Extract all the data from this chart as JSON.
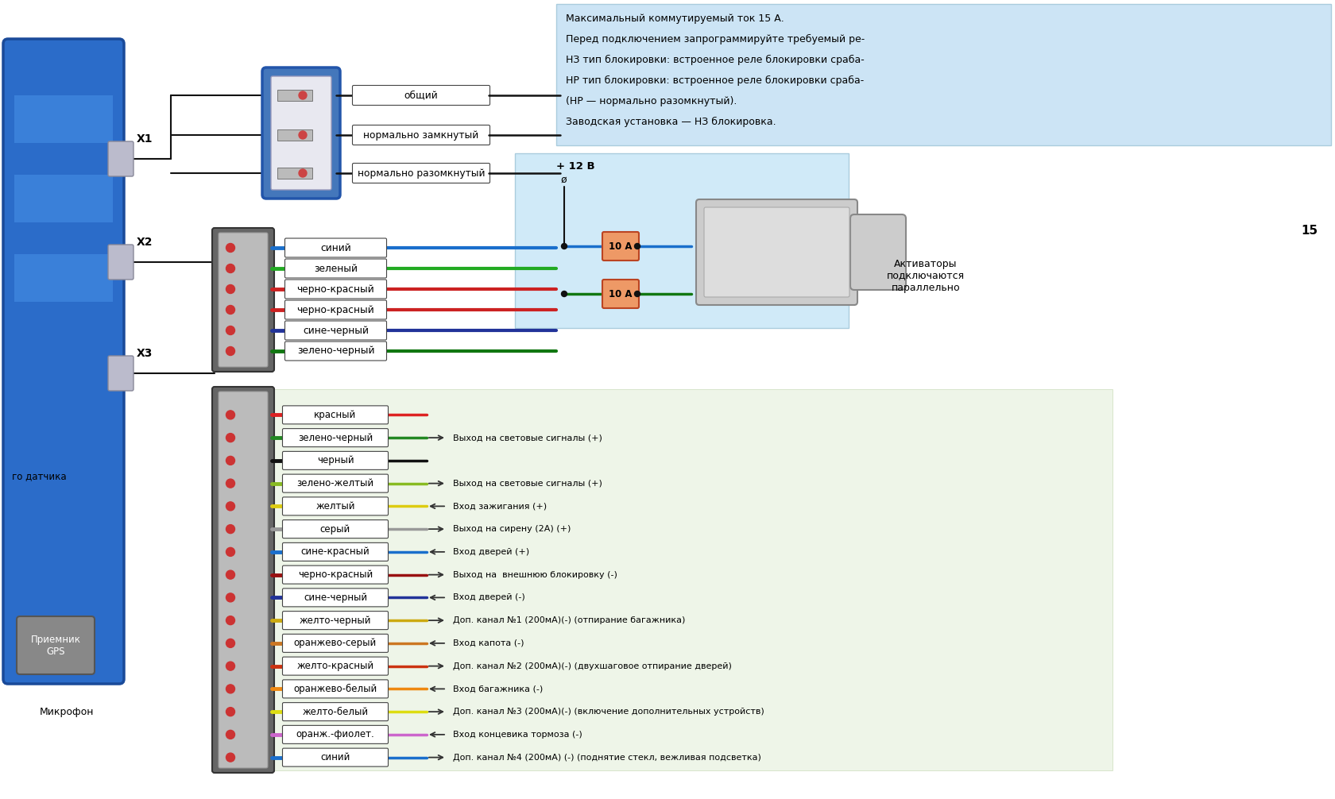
{
  "bg_color": "#ffffff",
  "info_box_color": "#cce4f5",
  "info_lines": [
    "Максимальный коммутируемый ток 15 А.",
    "Перед подключением запрограммируйте требуемый ре-",
    "НЗ тип блокировки: встроенное реле блокировки сраба-",
    "НР тип блокировки: встроенное реле блокировки сраба-",
    "(НР — нормально разомкнутый).",
    "Заводская установка — НЗ блокировка."
  ],
  "relay_labels": [
    "общий",
    "нормально замкнутый",
    "нормально разомкнутый"
  ],
  "x2_labels": [
    "синий",
    "зеленый",
    "черно-красный",
    "черно-красный",
    "сине-черный",
    "зелено-черный"
  ],
  "x2_wire_colors": [
    "#1a6fcc",
    "#22aa22",
    "#cc2222",
    "#cc2222",
    "#223399",
    "#117711"
  ],
  "x2_wire_colors2": [
    "#1a6fcc",
    "#22aa22",
    "#111111",
    "#111111",
    "#223399",
    "#117711"
  ],
  "x3_labels": [
    "красный",
    "зелено-черный",
    "черный",
    "зелено-желтый",
    "желтый",
    "серый",
    "сине-красный",
    "черно-красный",
    "сине-черный",
    "желто-черный",
    "оранжево-серый",
    "желто-красный",
    "оранжево-белый",
    "желто-белый",
    "оранж.-фиолет.",
    "синий"
  ],
  "x3_wire_colors": [
    "#dd2222",
    "#228822",
    "#111111",
    "#88bb22",
    "#ddcc11",
    "#999999",
    "#1a6fcc",
    "#991111",
    "#223399",
    "#ccaa11",
    "#cc7722",
    "#cc3311",
    "#ee8811",
    "#dddd11",
    "#cc66cc",
    "#1a6fcc"
  ],
  "x3_right_labels": [
    "",
    "Выход на световые сигналы (+)",
    "",
    "Выход на световые сигналы (+)",
    "Вход зажигания (+)",
    "Выход на сирену (2А) (+)",
    "Вход дверей (+)",
    "Выход на  внешнюю блокировку (-)",
    "Вход дверей (-)",
    "Доп. канал №1 (200мА)(-) (отпирание багажника)",
    "Вход капота (-)",
    "Доп. канал №2 (200мА)(-) (двухшаговое отпирание дверей)",
    "Вход багажника (-)",
    "Доп. канал №3 (200мА)(-) (включение дополнительных устройств)",
    "Вход концевика тормоза (-)",
    "Доп. канал №4 (200мА) (-) (поднятие стекл, вежливая подсветка)"
  ],
  "x3_arrow_dirs": [
    0,
    1,
    0,
    1,
    -1,
    1,
    -1,
    1,
    -1,
    1,
    -1,
    1,
    -1,
    1,
    -1,
    1
  ],
  "connector_x_labels": [
    "X1",
    "X2",
    "X3"
  ],
  "power_label": "+ 12 В",
  "fuse_value": "10 А",
  "activator_label": "Активаторы\nподключаются\nпараллельно",
  "gps_label": "Приемник\nGPS",
  "mic_label": "Микрофон",
  "sensor_label": "го датчика",
  "label_15": "15"
}
